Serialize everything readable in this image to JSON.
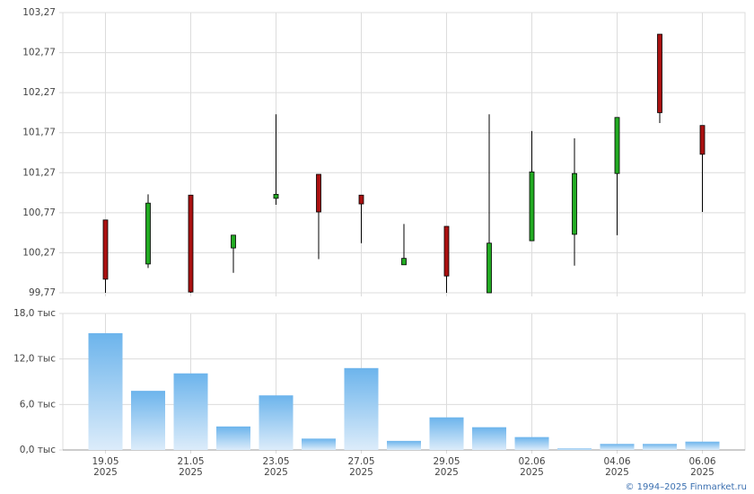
{
  "chart_data": [
    {
      "type": "candlestick",
      "open": [
        100.68,
        100.13,
        100.99,
        100.33,
        100.95,
        101.25,
        100.99,
        100.12,
        100.6,
        99.77,
        100.42,
        100.5,
        101.26,
        103.0,
        101.86
      ],
      "high": [
        100.68,
        101.0,
        100.99,
        100.49,
        102.0,
        101.25,
        100.99,
        100.63,
        100.6,
        102.0,
        101.79,
        101.7,
        101.96,
        103.0,
        101.86
      ],
      "low": [
        99.77,
        100.08,
        99.77,
        100.02,
        100.87,
        100.19,
        100.39,
        100.12,
        99.77,
        99.77,
        100.42,
        100.11,
        100.49,
        101.89,
        100.78
      ],
      "close": [
        99.94,
        100.89,
        99.78,
        100.49,
        101.0,
        100.78,
        100.88,
        100.2,
        99.98,
        100.39,
        101.28,
        101.26,
        101.96,
        102.02,
        101.5
      ],
      "up_color": "#22aa22",
      "down_color": "#aa1111",
      "ylim": [
        99.77,
        103.27
      ],
      "yticks": [
        {
          "value": 99.77,
          "label": "99,77"
        },
        {
          "value": 100.27,
          "label": "100,27"
        },
        {
          "value": 100.77,
          "label": "100,77"
        },
        {
          "value": 101.27,
          "label": "101,27"
        },
        {
          "value": 101.77,
          "label": "101,77"
        },
        {
          "value": 102.27,
          "label": "102,27"
        },
        {
          "value": 102.77,
          "label": "102,77"
        },
        {
          "value": 103.27,
          "label": "103,27"
        }
      ],
      "grid": true
    },
    {
      "type": "bar",
      "categories": [
        "19.05",
        null,
        "21.05",
        null,
        "23.05",
        null,
        "27.05",
        null,
        "29.05",
        null,
        "02.06",
        null,
        "04.06",
        null,
        "06.06"
      ],
      "x_sublabels": [
        "2025",
        null,
        "2025",
        null,
        "2025",
        null,
        "2025",
        null,
        "2025",
        null,
        "2025",
        null,
        "2025",
        null,
        "2025"
      ],
      "values": [
        15.4,
        7.8,
        10.1,
        3.1,
        7.2,
        1.5,
        10.8,
        1.2,
        4.3,
        3.0,
        1.7,
        0.2,
        0.8,
        0.8,
        1.1
      ],
      "color": "#6cb4ec",
      "ylim": [
        0,
        18
      ],
      "yticks": [
        {
          "value": 0,
          "label": "0,0 тыс"
        },
        {
          "value": 6,
          "label": "6,0 тыс"
        },
        {
          "value": 12,
          "label": "12,0 тыс"
        },
        {
          "value": 18,
          "label": "18,0 тыс"
        }
      ],
      "grid": true
    }
  ],
  "source": "© 1994–2025 Finmarket.ru"
}
